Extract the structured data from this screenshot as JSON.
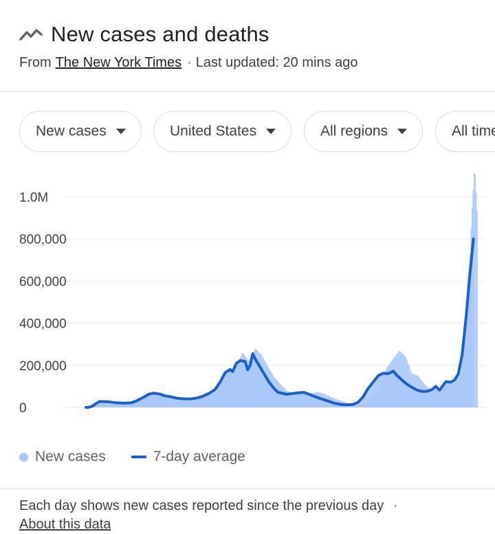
{
  "header": {
    "title": "New cases and deaths",
    "source_prefix": "From",
    "source_name": "The New York Times",
    "separator": "·",
    "updated": "Last updated: 20 mins ago"
  },
  "filters": [
    {
      "label": "New cases",
      "name": "metric-filter-chip"
    },
    {
      "label": "United States",
      "name": "location-filter-chip"
    },
    {
      "label": "All regions",
      "name": "region-filter-chip"
    },
    {
      "label": "All time",
      "name": "time-range-filter-chip"
    }
  ],
  "icons": {
    "title": "trending-line-icon",
    "dropdown": "caret-down-icon"
  },
  "colors": {
    "bars": "#a8c7fa",
    "average_line": "#1a5fd0",
    "grid": "#e8eaed"
  },
  "legend": {
    "bars_label": "New cases",
    "line_label": "7-day average"
  },
  "footer": {
    "note": "Each day shows new cases reported since the previous day",
    "separator": "·",
    "link": "About this data"
  },
  "chart_data": {
    "type": "bar",
    "title": "",
    "xlabel": "",
    "ylabel": "",
    "ylim": [
      0,
      1150000
    ],
    "y_ticks": [
      0,
      200000,
      400000,
      600000,
      800000,
      1000000
    ],
    "y_tick_labels": [
      "0",
      "200,000",
      "400,000",
      "600,000",
      "800,000",
      "1.0M"
    ],
    "grid": true,
    "legend_position": "bottom",
    "series": [
      {
        "name": "New cases",
        "type": "bar",
        "points": [
          [
            0,
            0
          ],
          [
            10,
            15000
          ],
          [
            20,
            30000
          ],
          [
            30,
            27000
          ],
          [
            40,
            25000
          ],
          [
            50,
            22000
          ],
          [
            60,
            20000
          ],
          [
            70,
            20000
          ],
          [
            80,
            25000
          ],
          [
            90,
            35000
          ],
          [
            100,
            55000
          ],
          [
            110,
            67000
          ],
          [
            120,
            65000
          ],
          [
            130,
            57000
          ],
          [
            140,
            52000
          ],
          [
            150,
            45000
          ],
          [
            160,
            43000
          ],
          [
            170,
            38000
          ],
          [
            180,
            42000
          ],
          [
            190,
            50000
          ],
          [
            200,
            62000
          ],
          [
            210,
            85000
          ],
          [
            220,
            130000
          ],
          [
            230,
            170000
          ],
          [
            240,
            200000
          ],
          [
            250,
            260000
          ],
          [
            260,
            220000
          ],
          [
            270,
            280000
          ],
          [
            280,
            250000
          ],
          [
            290,
            195000
          ],
          [
            300,
            145000
          ],
          [
            310,
            110000
          ],
          [
            320,
            80000
          ],
          [
            330,
            68000
          ],
          [
            340,
            62000
          ],
          [
            350,
            63000
          ],
          [
            360,
            68000
          ],
          [
            370,
            72000
          ],
          [
            380,
            65000
          ],
          [
            390,
            50000
          ],
          [
            400,
            38000
          ],
          [
            410,
            28000
          ],
          [
            420,
            18000
          ],
          [
            430,
            14000
          ],
          [
            440,
            15000
          ],
          [
            450,
            25000
          ],
          [
            460,
            60000
          ],
          [
            470,
            110000
          ],
          [
            480,
            190000
          ],
          [
            490,
            230000
          ],
          [
            500,
            270000
          ],
          [
            510,
            240000
          ],
          [
            520,
            160000
          ],
          [
            530,
            150000
          ],
          [
            540,
            110000
          ],
          [
            550,
            80000
          ],
          [
            560,
            75000
          ],
          [
            570,
            100000
          ],
          [
            580,
            120000
          ],
          [
            590,
            110000
          ],
          [
            600,
            150000
          ],
          [
            610,
            500000
          ],
          [
            615,
            900000
          ],
          [
            620,
            1150000
          ],
          [
            625,
            880000
          ]
        ]
      },
      {
        "name": "7-day average",
        "type": "line",
        "points": [
          [
            0,
            0
          ],
          [
            4,
            0
          ],
          [
            10,
            5000
          ],
          [
            16,
            18000
          ],
          [
            22,
            28000
          ],
          [
            35,
            27000
          ],
          [
            48,
            22000
          ],
          [
            60,
            20000
          ],
          [
            72,
            22000
          ],
          [
            80,
            30000
          ],
          [
            90,
            45000
          ],
          [
            100,
            62000
          ],
          [
            108,
            68000
          ],
          [
            118,
            63000
          ],
          [
            126,
            55000
          ],
          [
            136,
            50000
          ],
          [
            146,
            43000
          ],
          [
            156,
            41000
          ],
          [
            166,
            40000
          ],
          [
            176,
            44000
          ],
          [
            186,
            52000
          ],
          [
            196,
            66000
          ],
          [
            206,
            85000
          ],
          [
            214,
            120000
          ],
          [
            222,
            165000
          ],
          [
            230,
            180000
          ],
          [
            234,
            170000
          ],
          [
            240,
            210000
          ],
          [
            246,
            222000
          ],
          [
            254,
            218000
          ],
          [
            258,
            178000
          ],
          [
            262,
            200000
          ],
          [
            266,
            255000
          ],
          [
            270,
            230000
          ],
          [
            276,
            200000
          ],
          [
            284,
            160000
          ],
          [
            292,
            120000
          ],
          [
            300,
            90000
          ],
          [
            306,
            72000
          ],
          [
            312,
            68000
          ],
          [
            320,
            62000
          ],
          [
            330,
            66000
          ],
          [
            340,
            70000
          ],
          [
            348,
            71000
          ],
          [
            356,
            62000
          ],
          [
            366,
            50000
          ],
          [
            376,
            40000
          ],
          [
            386,
            30000
          ],
          [
            396,
            20000
          ],
          [
            406,
            14000
          ],
          [
            416,
            12000
          ],
          [
            426,
            14000
          ],
          [
            434,
            24000
          ],
          [
            442,
            50000
          ],
          [
            450,
            90000
          ],
          [
            458,
            120000
          ],
          [
            466,
            150000
          ],
          [
            474,
            162000
          ],
          [
            482,
            160000
          ],
          [
            490,
            172000
          ],
          [
            496,
            152000
          ],
          [
            504,
            130000
          ],
          [
            512,
            110000
          ],
          [
            520,
            95000
          ],
          [
            528,
            82000
          ],
          [
            536,
            76000
          ],
          [
            544,
            76000
          ],
          [
            552,
            85000
          ],
          [
            558,
            100000
          ],
          [
            564,
            82000
          ],
          [
            568,
            98000
          ],
          [
            574,
            122000
          ],
          [
            582,
            120000
          ],
          [
            588,
            130000
          ],
          [
            594,
            160000
          ],
          [
            600,
            250000
          ],
          [
            606,
            420000
          ],
          [
            612,
            620000
          ],
          [
            618,
            800000
          ]
        ]
      }
    ]
  }
}
